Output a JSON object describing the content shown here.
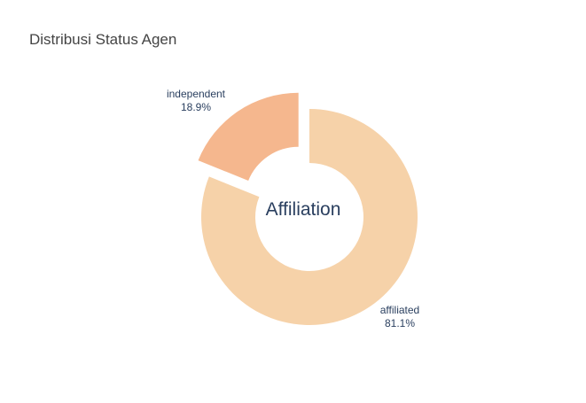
{
  "chart_data": {
    "type": "pie",
    "hole": true,
    "title": "Distribusi Status Agen",
    "center_label": "Affiliation",
    "slices": [
      {
        "label": "affiliated",
        "percent_label": "81.1%",
        "value": 81.1,
        "color": "#f6d2a9",
        "pulled": false
      },
      {
        "label": "independent",
        "percent_label": "18.9%",
        "value": 18.9,
        "color": "#f5b78e",
        "pulled": true
      }
    ],
    "text_color": "#2a3f5f",
    "title_color": "#444444"
  }
}
